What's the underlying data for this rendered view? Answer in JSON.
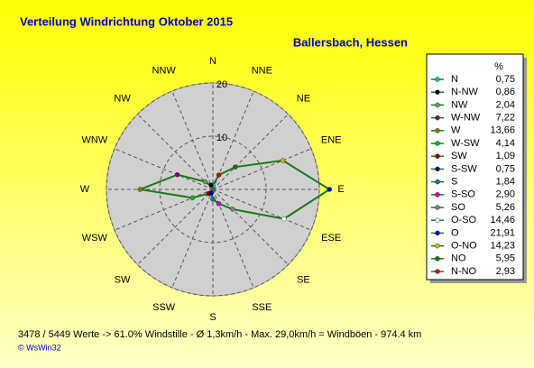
{
  "chart_data": {
    "type": "radar",
    "title": "Verteilung Windrichtung    Oktober 2015",
    "subtitle": "Ballersbach, Hessen",
    "categories": [
      "N",
      "NNE",
      "NE",
      "ENE",
      "E",
      "ESE",
      "SE",
      "SSE",
      "S",
      "SSW",
      "SW",
      "WSW",
      "W",
      "WNW",
      "NW",
      "NNW"
    ],
    "legend_header": "%",
    "directions": [
      "N",
      "N-NW",
      "NW",
      "W-NW",
      "W",
      "W-SW",
      "SW",
      "S-SW",
      "S",
      "S-SO",
      "SO",
      "O-SO",
      "O",
      "O-NO",
      "NO",
      "N-NO"
    ],
    "values": [
      0.75,
      0.86,
      2.04,
      7.22,
      13.66,
      4.14,
      1.09,
      0.75,
      1.84,
      2.9,
      5.26,
      14.46,
      21.91,
      14.23,
      5.95,
      2.93
    ],
    "value_labels": [
      "0,75",
      "0,86",
      "2,04",
      "7,22",
      "13,66",
      "4,14",
      "1,09",
      "0,75",
      "1,84",
      "2,90",
      "5,26",
      "14,46",
      "21,91",
      "14,23",
      "5,95",
      "2,93"
    ],
    "marker_colors": [
      "#00c0c0",
      "#000000",
      "#60a060",
      "#800080",
      "#808000",
      "#00c000",
      "#800000",
      "#000080",
      "#008080",
      "#c000c0",
      "#808080",
      "#ffffff",
      "#0000c0",
      "#c0c000",
      "#008000",
      "#e00000"
    ],
    "color": "#1a7a1a",
    "rlim": [
      0,
      20
    ],
    "rticks": [
      10,
      20
    ],
    "footer": "3478 / 5449 Werte  -> 61.0% Windstille   -   Ø 1,3km/h  -  Max. 29,0km/h = Windböen   -   974.4 km",
    "credit": "© WsWin32"
  }
}
